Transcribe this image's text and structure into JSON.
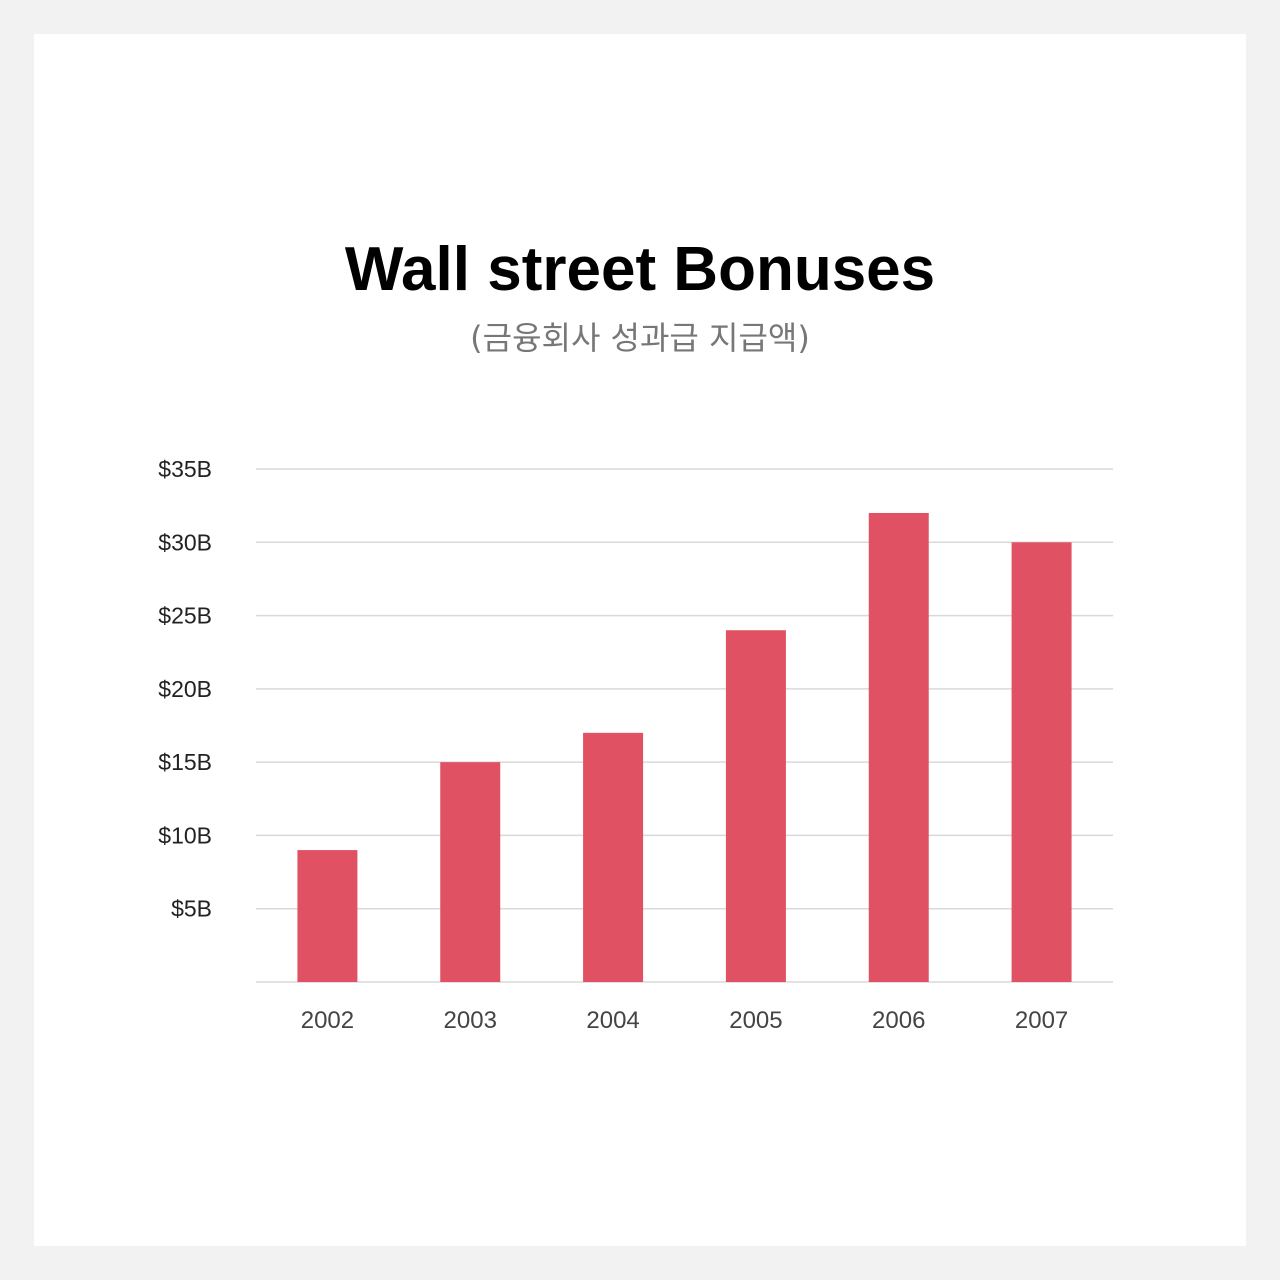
{
  "chart_data": {
    "type": "bar",
    "title": "Wall street Bonuses",
    "subtitle": "(금융회사 성과급 지급액)",
    "categories": [
      "2002",
      "2003",
      "2004",
      "2005",
      "2006",
      "2007"
    ],
    "values": [
      9,
      15,
      17,
      24,
      32,
      30
    ],
    "unit": "billion USD",
    "ylim": [
      0,
      35
    ],
    "yticks": [
      5,
      10,
      15,
      20,
      25,
      30,
      35
    ],
    "ytick_labels": [
      "$5B",
      "$10B",
      "$15B",
      "$20B",
      "$25B",
      "$30B",
      "$35B"
    ],
    "grid": true,
    "legend": "none",
    "bar_color": "#e05263",
    "grid_color": "#d9d9d9"
  }
}
